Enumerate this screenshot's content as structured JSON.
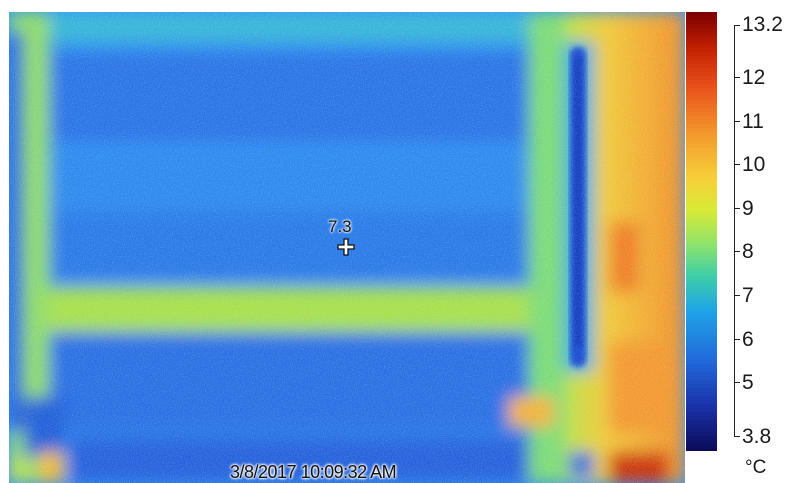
{
  "thermal_image": {
    "spot_reading": "7.3",
    "timestamp": "3/8/2017 10:09:32 AM"
  },
  "color_scale": {
    "unit": "°C",
    "max_label": "13.2",
    "min_label": "3.8",
    "tick_labels": [
      "12",
      "11",
      "10",
      "9",
      "8",
      "7",
      "6",
      "5"
    ],
    "palette": [
      "#7a0000",
      "#e8501a",
      "#f6d03a",
      "#8ee36c",
      "#1fa4e6",
      "#1a31a8",
      "#0b0b58"
    ]
  }
}
